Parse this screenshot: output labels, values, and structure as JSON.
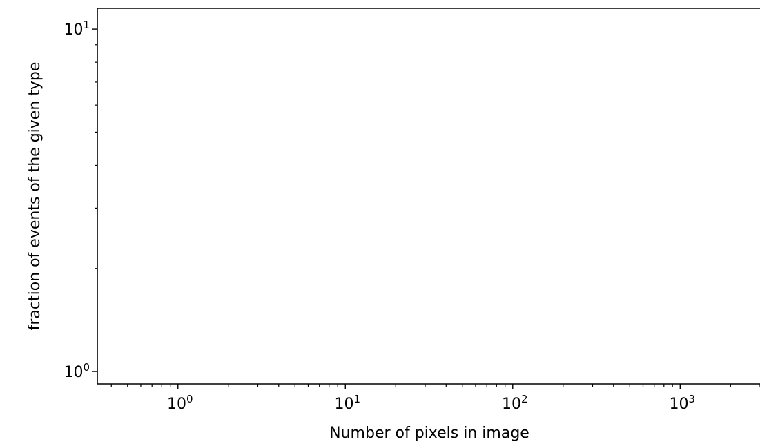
{
  "chart_data": {
    "type": "scatter",
    "title": "",
    "xlabel": "Number of pixels in image",
    "ylabel": "fraction of events of the given type",
    "x_scale": "log",
    "y_scale": "log",
    "xlim": [
      0.33,
      3000
    ],
    "ylim": [
      0.92,
      11.5
    ],
    "x_ticks": [
      {
        "value": 1,
        "base": "10",
        "exp": "0"
      },
      {
        "value": 10,
        "base": "10",
        "exp": "1"
      },
      {
        "value": 100,
        "base": "10",
        "exp": "2"
      },
      {
        "value": 1000,
        "base": "10",
        "exp": "3"
      }
    ],
    "y_ticks": [
      {
        "value": 1,
        "base": "10",
        "exp": "0"
      },
      {
        "value": 10,
        "base": "10",
        "exp": "1"
      }
    ],
    "grid": false,
    "series": []
  }
}
